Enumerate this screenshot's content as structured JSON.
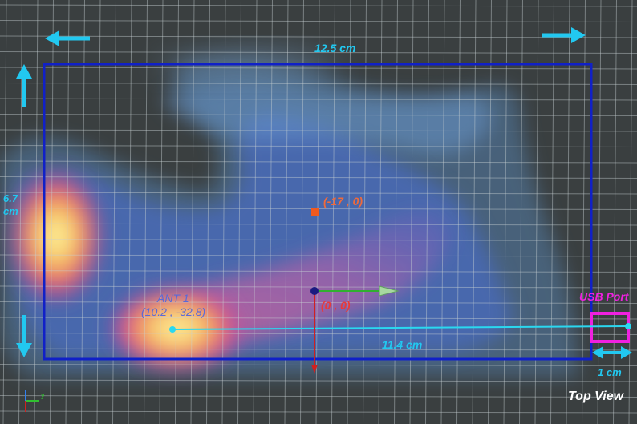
{
  "colors": {
    "background": "#3a3f40",
    "grid": "#9aa3a6",
    "outline": "#1020c8",
    "accent_cyan": "#22c8f0",
    "usb_magenta": "#f020e0",
    "origin_label": "#e83a3a",
    "point_label": "#f06a3a",
    "ant_label": "#5a6ad8",
    "view_label": "#ffffff"
  },
  "dimensions": {
    "width_label": "12.5 cm",
    "height_label_line1": "6.7",
    "height_label_line2": "cm",
    "distance_label": "11.4 cm",
    "port_width_label": "1 cm"
  },
  "markers": {
    "point_label": "(-17 , 0)",
    "origin_label": "(0 , 0)",
    "antenna_name": "ANT 1",
    "antenna_coords": "(10.2 , -32.8)"
  },
  "usb_port_label": "USB Port",
  "view_label": "Top View",
  "axis_gizmo": {
    "y_label": "y"
  },
  "icons": [
    "arrow-left-icon",
    "arrow-right-icon",
    "arrow-up-icon",
    "arrow-down-icon",
    "double-arrow-icon",
    "axis-gizmo-icon"
  ]
}
